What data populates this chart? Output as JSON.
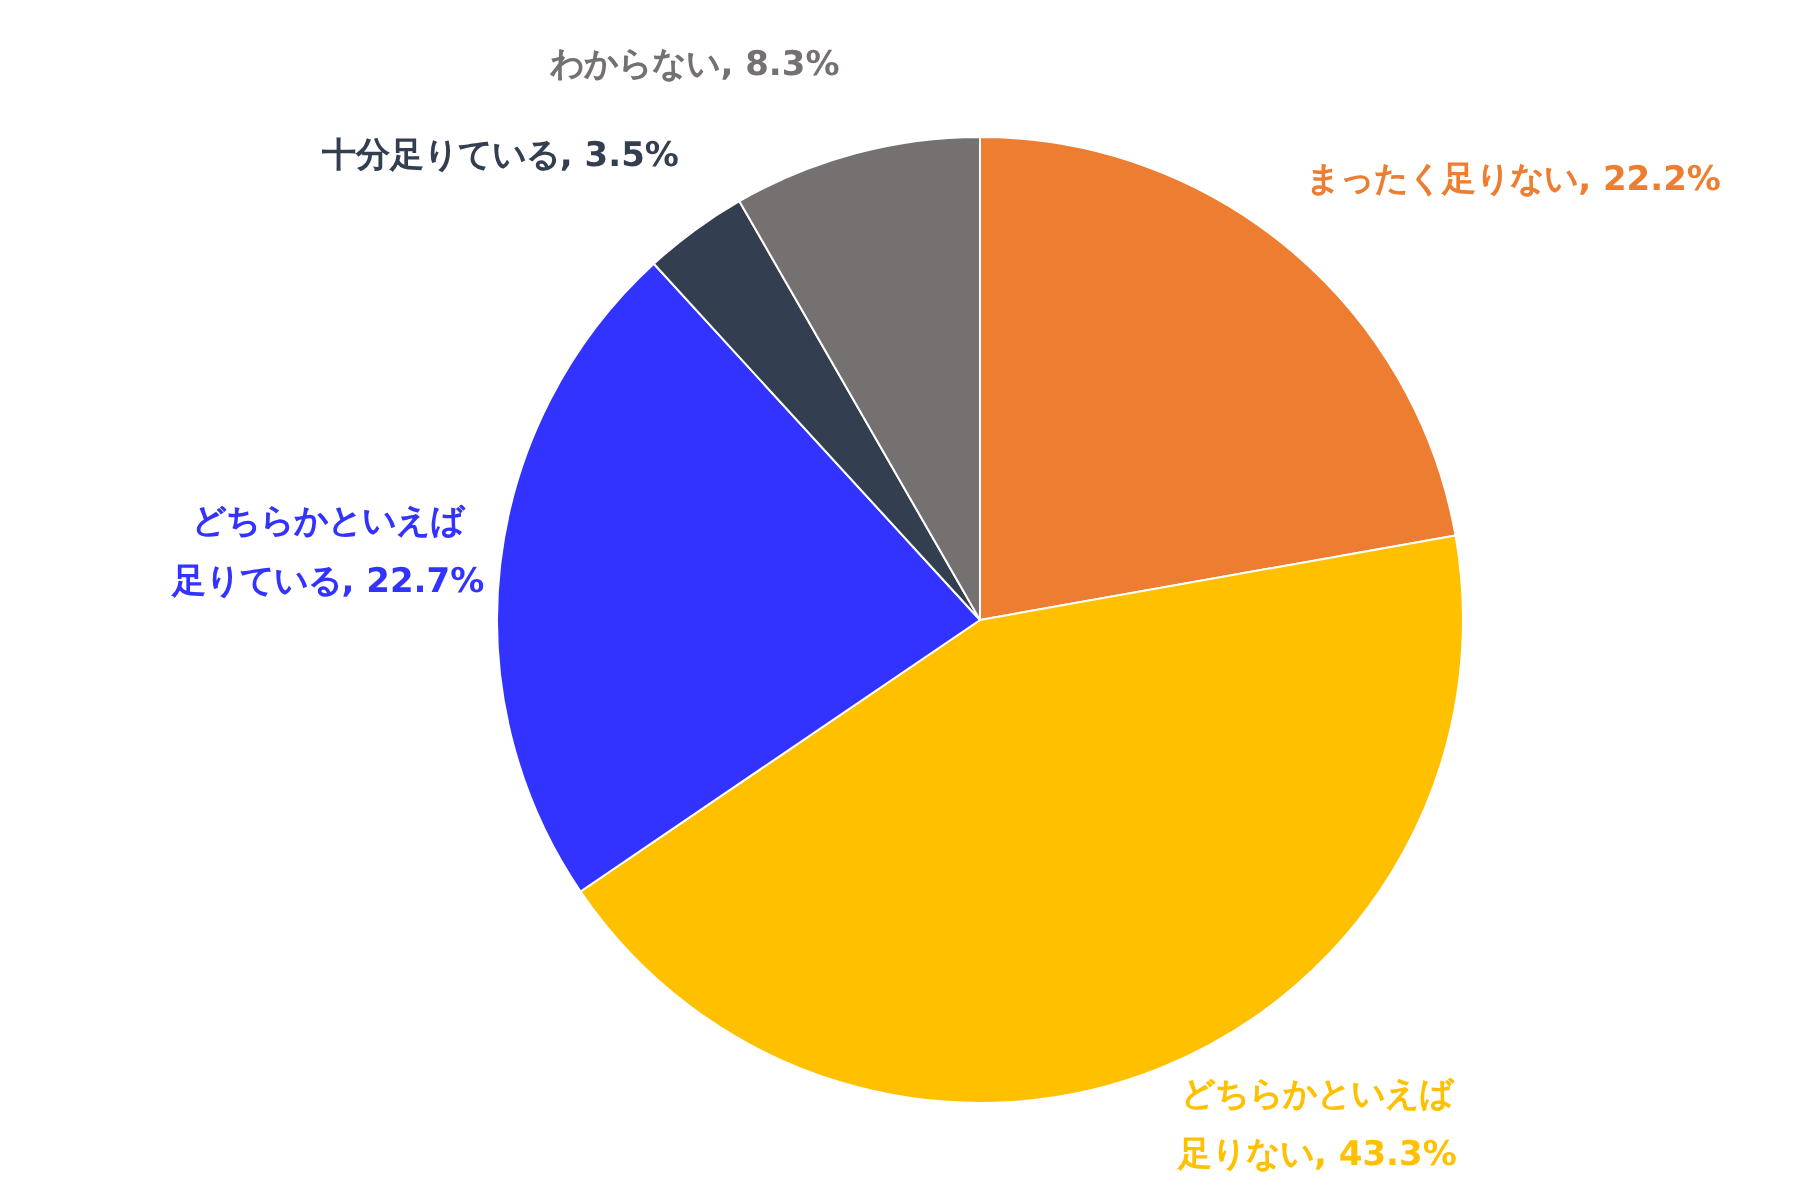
{
  "chart_data": {
    "type": "pie",
    "categories": [
      "まったく足りない",
      "どちらかといえば足りない",
      "どちらかといえば足りている",
      "十分足りている",
      "わからない"
    ],
    "values": [
      22.2,
      43.3,
      22.7,
      3.5,
      8.3
    ],
    "value_labels": [
      "22.2%",
      "43.3%",
      "22.7%",
      "3.5%",
      "8.3%"
    ],
    "colors": [
      "#ed7d31",
      "#ffc000",
      "#3333ff",
      "#333f50",
      "#767171"
    ],
    "legend": false
  }
}
